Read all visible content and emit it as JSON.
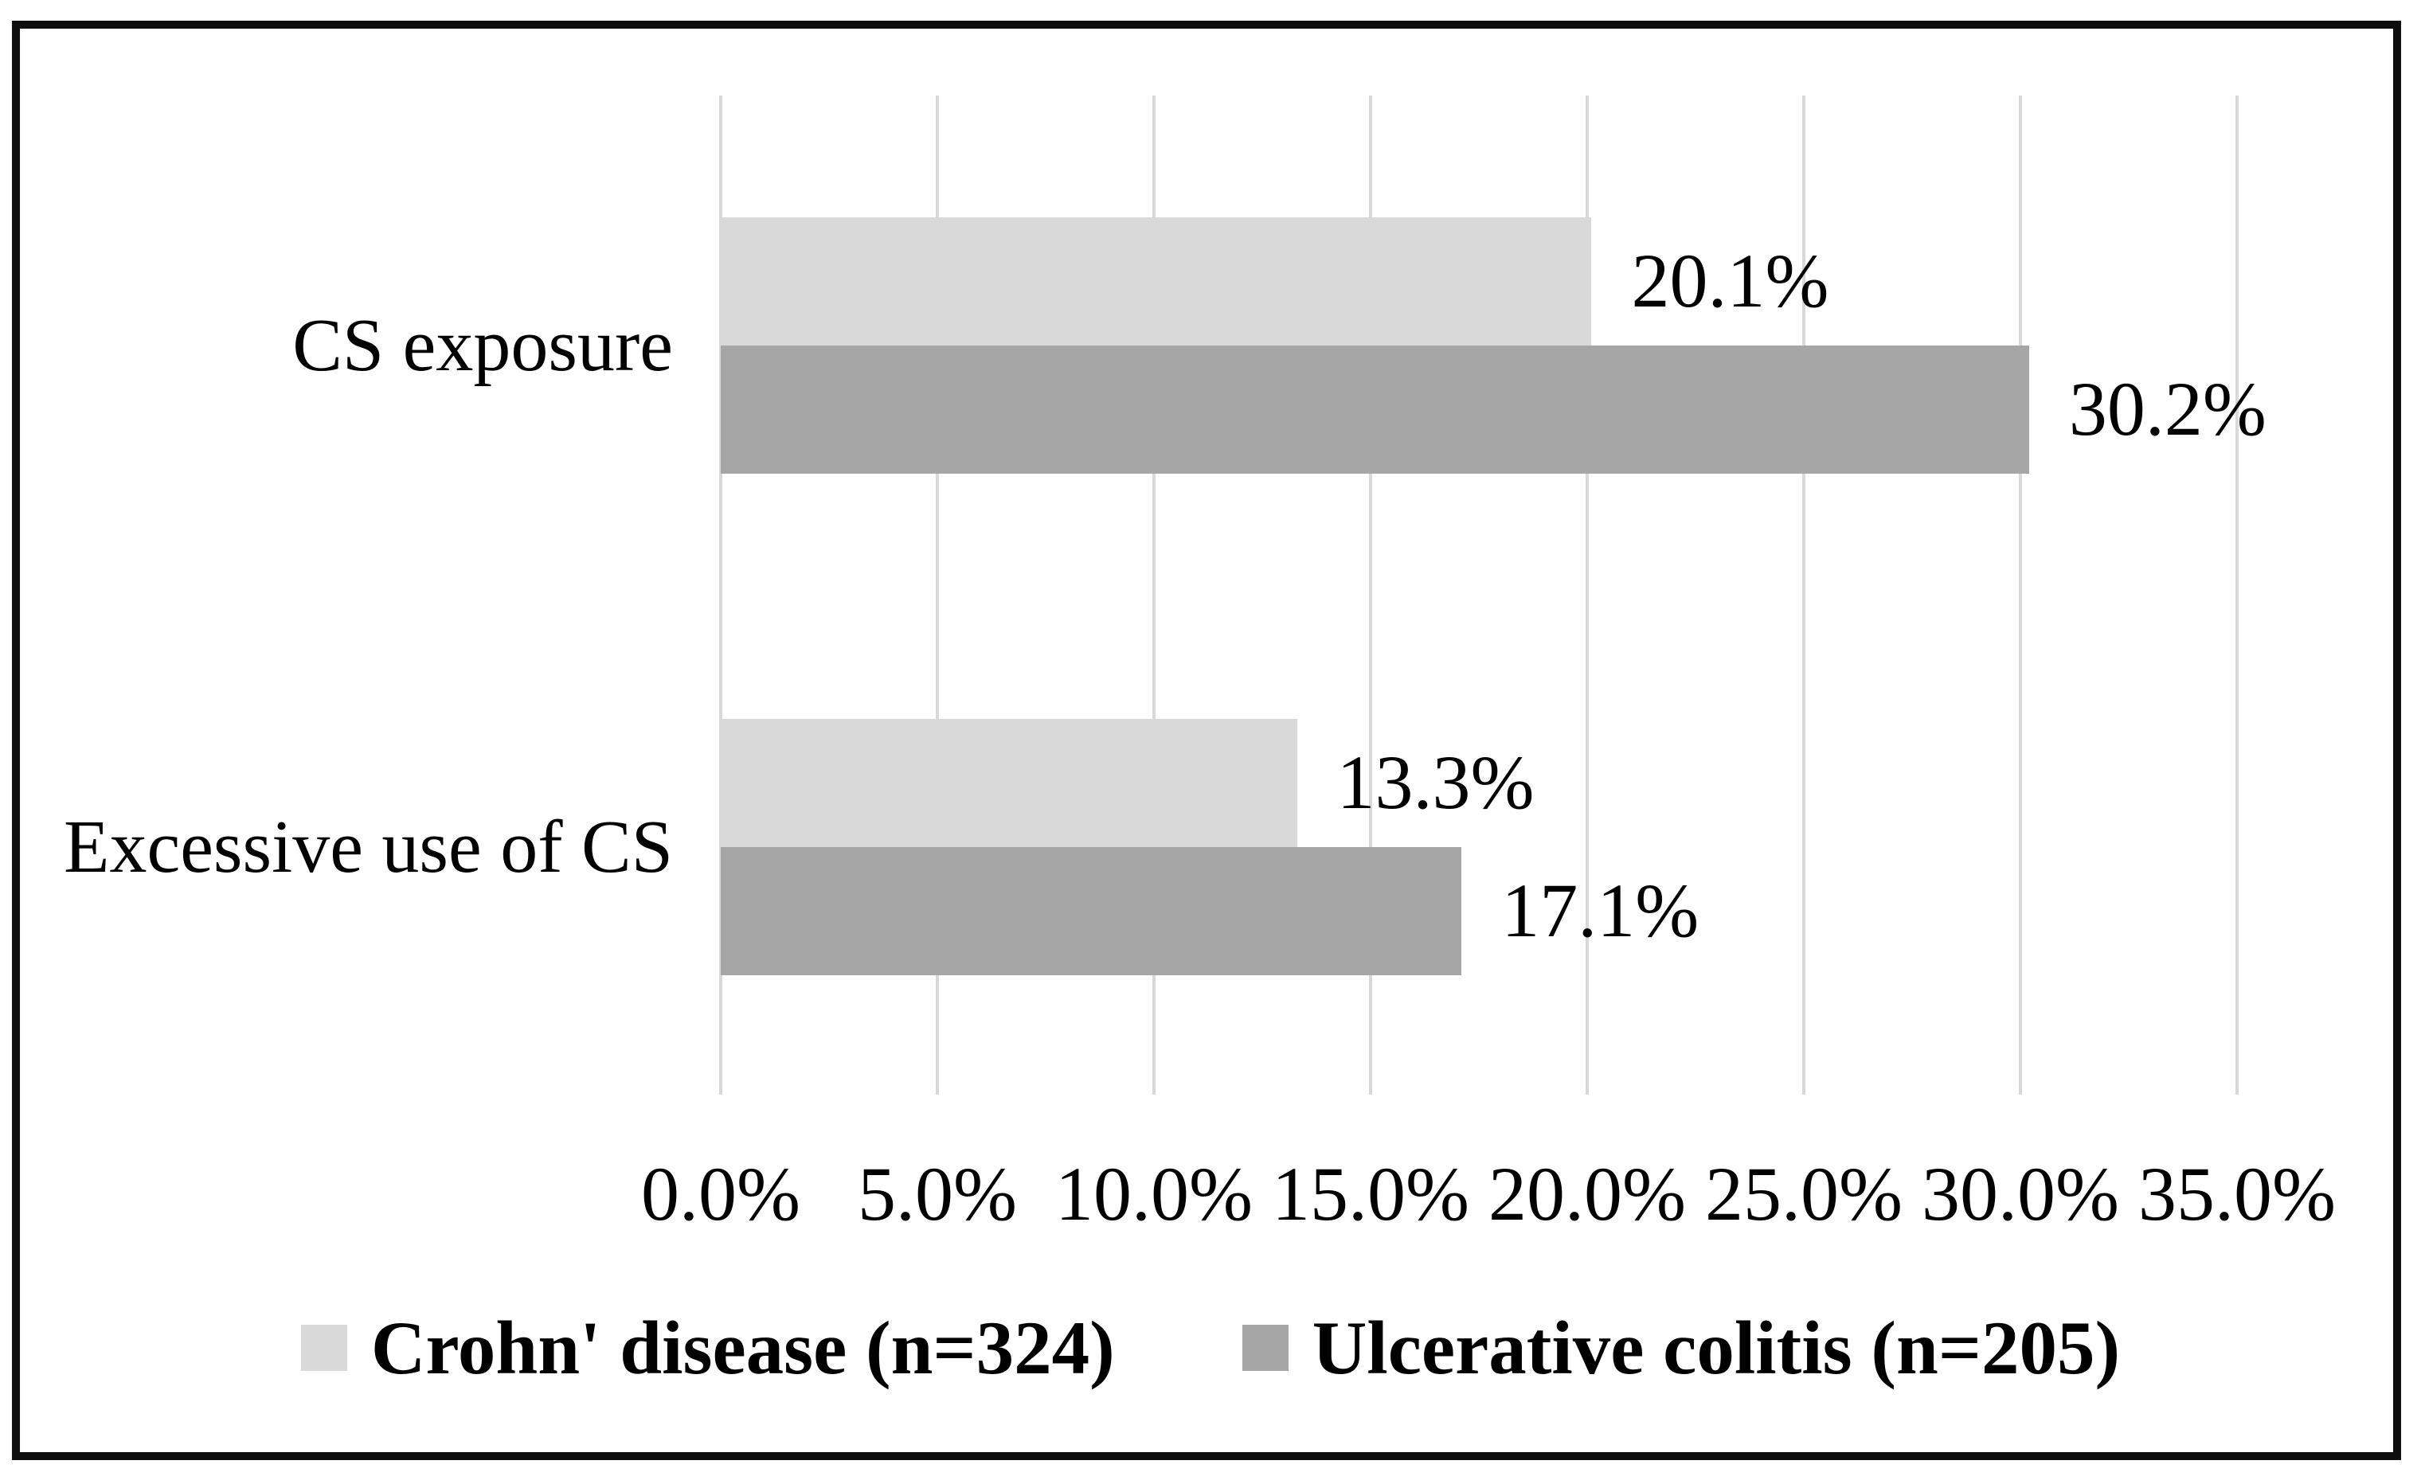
{
  "figure": {
    "background_color": "#ffffff",
    "border_color": "#0e0e0e",
    "gridline_color": "#d9d9d9",
    "text_color": "#000000"
  },
  "chart_data": {
    "type": "bar",
    "orientation": "horizontal",
    "title": "",
    "xlabel": "",
    "ylabel": "",
    "grid": "vertical-only",
    "legend_position": "bottom-center",
    "categories": [
      "CS exposure",
      "Excessive use of CS"
    ],
    "series": [
      {
        "name": "Crohn' disease (n=324)",
        "color": "#d9d9d9",
        "values": [
          20.1,
          13.3
        ],
        "labels": [
          "20.1%",
          "13.3%"
        ]
      },
      {
        "name": "Ulcerative colitis (n=205)",
        "color": "#a6a6a6",
        "values": [
          30.2,
          17.1
        ],
        "labels": [
          "30.2%",
          "17.1%"
        ]
      }
    ],
    "x_axis": {
      "min": 0,
      "max": 35,
      "tick_step": 5,
      "tick_labels": [
        "0.0%",
        "5.0%",
        "10.0%",
        "15.0%",
        "20.0%",
        "25.0%",
        "30.0%",
        "35.0%"
      ]
    }
  }
}
